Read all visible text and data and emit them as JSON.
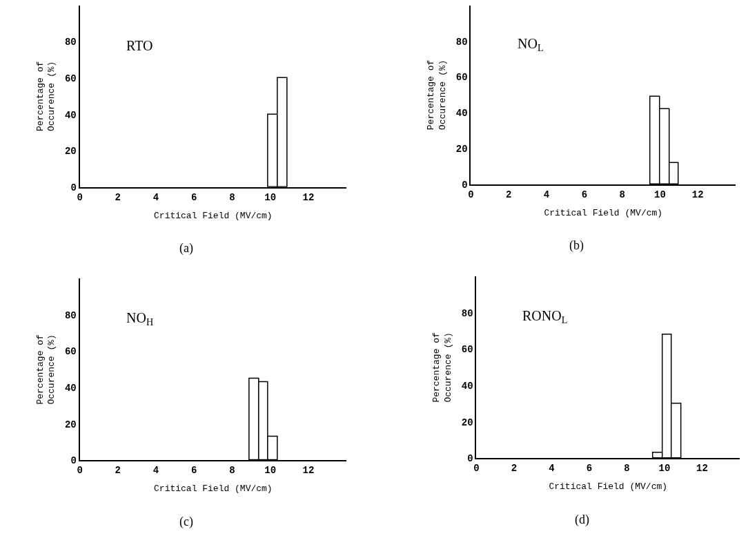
{
  "chart_data": [
    {
      "type": "histogram",
      "title": "RTO",
      "annotations": [
        "(a)"
      ],
      "xlabel": "Critical Field (MV/cm)",
      "ylabel": "Percentage of\nOccurence (%)",
      "bins": [
        9.9,
        10.4,
        10.9
      ],
      "values": [
        40,
        60
      ],
      "color": "#ffffff",
      "xlim": [
        0,
        14
      ],
      "ylim": [
        0,
        100
      ],
      "xticks": [
        0,
        2,
        4,
        6,
        8,
        10,
        12
      ],
      "yticks": [
        0,
        20,
        40,
        60,
        80
      ]
    },
    {
      "type": "histogram",
      "title": "NO$_{L}$",
      "annotations": [
        "(b)"
      ],
      "xlabel": "Critical Field (MV/cm)",
      "ylabel": "Percentage of\nOccurence (%)",
      "bins": [
        9.5,
        10,
        10.5,
        11
      ],
      "values": [
        49,
        42,
        12
      ],
      "color": "#ffffff",
      "xlim": [
        0,
        14
      ],
      "ylim": [
        0,
        100
      ],
      "xticks": [
        0,
        2,
        4,
        6,
        8,
        10,
        12
      ],
      "yticks": [
        0,
        20,
        40,
        60,
        80
      ]
    },
    {
      "type": "histogram",
      "title": "NO$_{H}$",
      "annotations": [
        "(c)"
      ],
      "xlabel": "Critical Field (MV/cm)",
      "ylabel": "Percentage of\nOccurence (%)",
      "bins": [
        8.9,
        9.4,
        9.9,
        10.4
      ],
      "values": [
        45,
        43,
        13
      ],
      "color": "#ffffff",
      "xlim": [
        0,
        14
      ],
      "ylim": [
        0,
        100
      ],
      "xticks": [
        0,
        2,
        4,
        6,
        8,
        10,
        12
      ],
      "yticks": [
        0,
        20,
        40,
        60,
        80
      ]
    },
    {
      "type": "histogram",
      "title": "RONO$_{L}$",
      "annotations": [
        "(d)"
      ],
      "xlabel": "Critical Field (MV/cm)",
      "ylabel": "Percentage of\nOccurence (%)",
      "bins": [
        9.4,
        9.9,
        10.4,
        10.9
      ],
      "values": [
        3,
        68,
        30
      ],
      "color": "#ffffff",
      "xlim": [
        0,
        14
      ],
      "ylim": [
        0,
        100
      ],
      "xticks": [
        0,
        2,
        4,
        6,
        8,
        10,
        12
      ],
      "yticks": [
        0,
        20,
        40,
        60,
        80
      ]
    }
  ]
}
